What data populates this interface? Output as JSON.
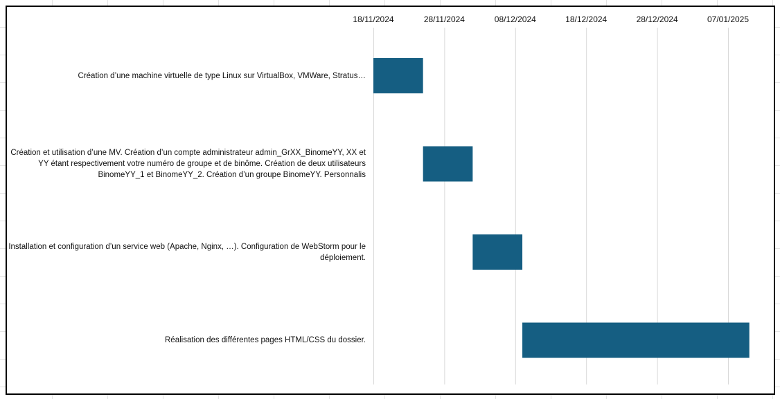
{
  "chart_data": {
    "type": "bar",
    "subtype": "gantt",
    "x_axis": {
      "position": "top",
      "ticks": [
        "18/11/2024",
        "28/11/2024",
        "08/12/2024",
        "18/12/2024",
        "28/12/2024",
        "07/01/2025"
      ],
      "range": [
        "2024-11-18",
        "2025-01-07"
      ],
      "grid": true
    },
    "tasks": [
      {
        "label": "Création d’une machine virtuelle de type Linux sur VirtualBox, VMWare, Stratus…",
        "start": "2024-11-18",
        "end": "2024-11-25"
      },
      {
        "label": "Création et utilisation d’une MV. Création d’un compte administrateur admin_GrXX_BinomeYY, XX et YY étant respectivement votre numéro de groupe et de binôme. Création de deux utilisateurs BinomeYY_1 et BinomeYY_2. Création d’un groupe BinomeYY. Personnalis",
        "start": "2024-11-25",
        "end": "2024-12-02"
      },
      {
        "label": "Installation et configuration d’un service web (Apache, Nginx, …). Configuration de WebStorm pour le déploiement.",
        "start": "2024-12-02",
        "end": "2024-12-09"
      },
      {
        "label": "Réalisation des différentes pages HTML/CSS du dossier.",
        "start": "2024-12-09",
        "end": "2025-01-10"
      }
    ],
    "colors": {
      "bar": "#155e82",
      "gridline": "#d9d9d9",
      "frame": "#000000"
    }
  }
}
